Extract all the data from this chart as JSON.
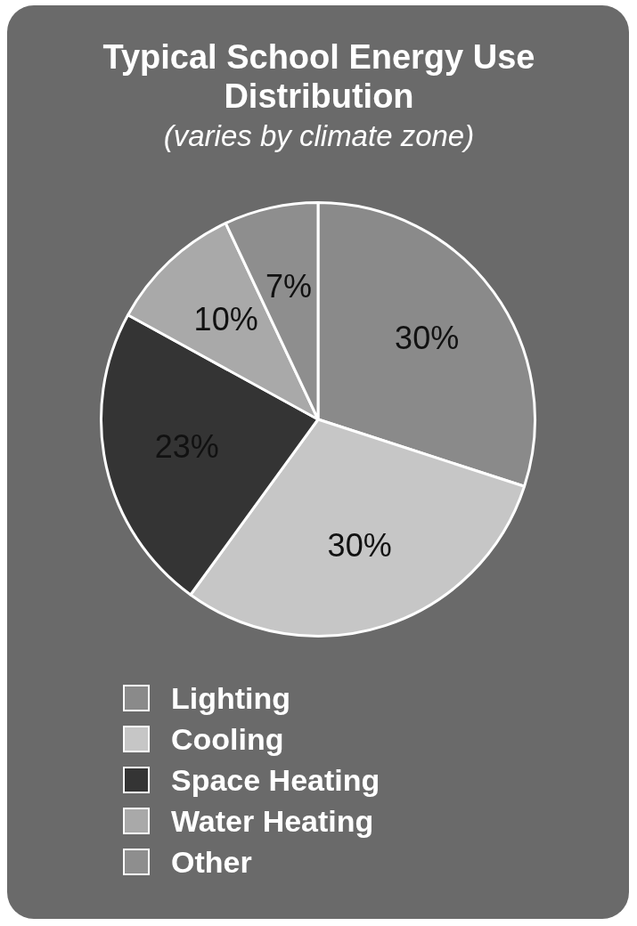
{
  "chart_data": {
    "type": "pie",
    "title": "Typical School Energy Use Distribution",
    "subtitle": "(varies by climate zone)",
    "categories": [
      "Lighting",
      "Cooling",
      "Space Heating",
      "Water Heating",
      "Other"
    ],
    "values": [
      30,
      30,
      23,
      10,
      7
    ],
    "colors": [
      "#8a8a8a",
      "#c6c6c6",
      "#343434",
      "#a9a9a9",
      "#8e8e8e"
    ],
    "value_labels": [
      "30%",
      "30%",
      "23%",
      "10%",
      "7%"
    ],
    "legend": "bottom"
  }
}
